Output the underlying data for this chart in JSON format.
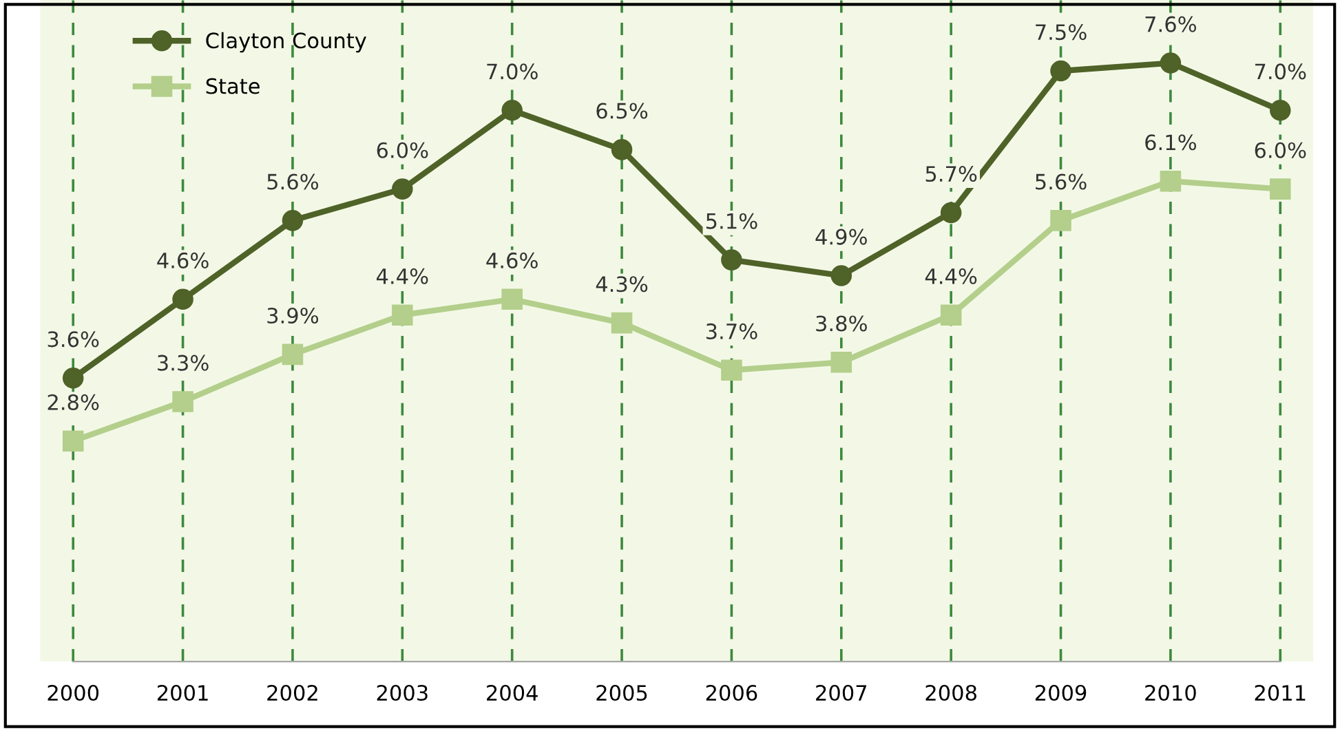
{
  "chart_data": {
    "type": "line",
    "categories": [
      "2000",
      "2001",
      "2002",
      "2003",
      "2004",
      "2005",
      "2006",
      "2007",
      "2008",
      "2009",
      "2010",
      "2011"
    ],
    "series": [
      {
        "name": "Clayton County",
        "color": "#4f6228",
        "marker": "circle",
        "values": [
          3.6,
          4.6,
          5.6,
          6.0,
          7.0,
          6.5,
          5.1,
          4.9,
          5.7,
          7.5,
          7.6,
          7.0
        ],
        "value_labels": [
          "3.6%",
          "4.6%",
          "5.6%",
          "6.0%",
          "7.0%",
          "6.5%",
          "5.1%",
          "4.9%",
          "5.7%",
          "7.5%",
          "7.6%",
          "7.0%"
        ]
      },
      {
        "name": "State",
        "color": "#b3cf8b",
        "marker": "square",
        "values": [
          2.8,
          3.3,
          3.9,
          4.4,
          4.6,
          4.3,
          3.7,
          3.8,
          4.4,
          5.6,
          6.1,
          6.0
        ],
        "value_labels": [
          "2.8%",
          "3.3%",
          "3.9%",
          "4.4%",
          "4.6%",
          "4.3%",
          "3.7%",
          "3.8%",
          "4.4%",
          "5.6%",
          "6.1%",
          "6.0%"
        ]
      }
    ],
    "ylim": [
      0,
      8.4
    ],
    "grid": "x",
    "legend": "top left",
    "line_style": "solid"
  }
}
